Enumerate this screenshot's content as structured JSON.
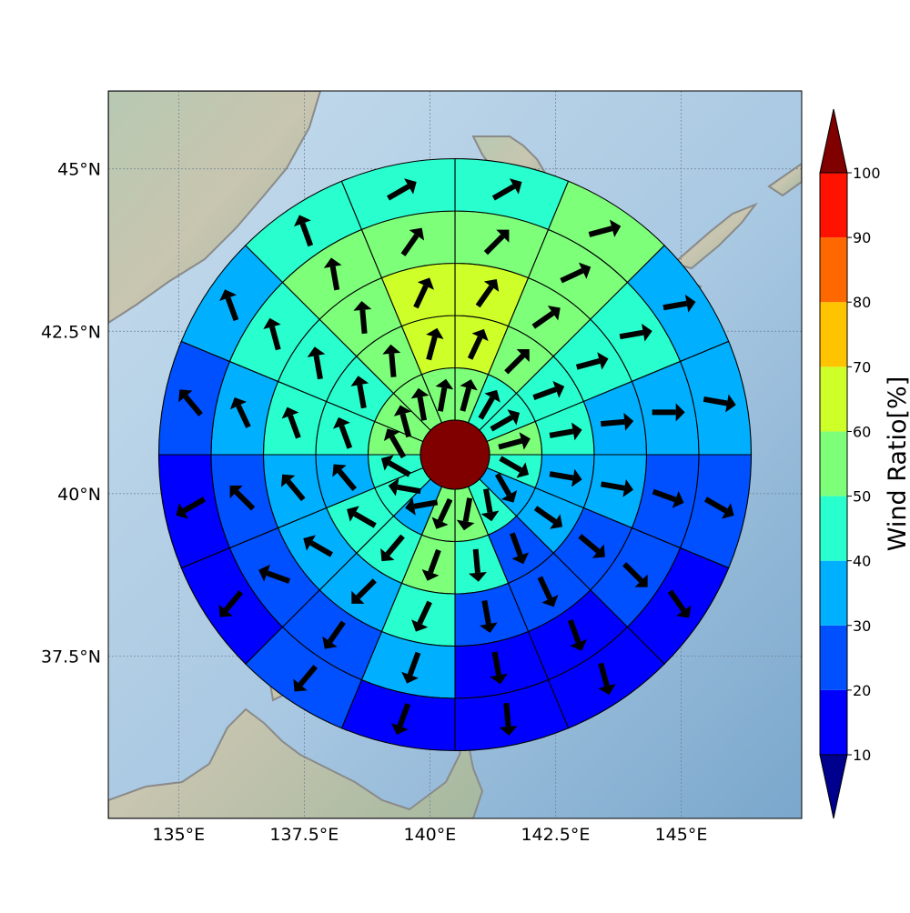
{
  "map": {
    "lat_ticks": [
      {
        "value": 45,
        "label": "45°N"
      },
      {
        "value": 42.5,
        "label": "42.5°N"
      },
      {
        "value": 40,
        "label": "40°N"
      },
      {
        "value": 37.5,
        "label": "37.5°N"
      }
    ],
    "lon_ticks": [
      {
        "value": 135,
        "label": "135°E"
      },
      {
        "value": 137.5,
        "label": "137.5°E"
      },
      {
        "value": 140,
        "label": "140°E"
      },
      {
        "value": 142.5,
        "label": "142.5°E"
      },
      {
        "value": 145,
        "label": "145°E"
      }
    ],
    "extent": {
      "lon_min": 133.6,
      "lon_max": 147.4,
      "lat_min": 35.0,
      "lat_max": 46.2
    },
    "center": {
      "lon": 140.5,
      "lat": 40.6
    },
    "grid": true
  },
  "colorbar": {
    "label": "Wind Ratio[%]",
    "ticks": [
      10,
      20,
      30,
      40,
      50,
      60,
      70,
      80,
      90,
      100
    ],
    "bins": [
      {
        "from": 10,
        "to": 20,
        "color": "#0000ff"
      },
      {
        "from": 20,
        "to": 30,
        "color": "#0050ff"
      },
      {
        "from": 30,
        "to": 40,
        "color": "#00b0ff"
      },
      {
        "from": 40,
        "to": 50,
        "color": "#29ffce"
      },
      {
        "from": 50,
        "to": 60,
        "color": "#7dff7a"
      },
      {
        "from": 60,
        "to": 70,
        "color": "#ceff29"
      },
      {
        "from": 70,
        "to": 80,
        "color": "#ffc400"
      },
      {
        "from": 80,
        "to": 90,
        "color": "#ff6800"
      },
      {
        "from": 90,
        "to": 100,
        "color": "#ff1300"
      }
    ],
    "under_color": "#00008f",
    "over_color": "#800000"
  },
  "chart_data": {
    "type": "heatmap",
    "rings": 5,
    "sectors": 16,
    "center_value": 100,
    "cells_note": "ring index 0 = innermost; sector index 0 = due north going clockwise",
    "ratios": [
      [
        55,
        45,
        45,
        55,
        45,
        35,
        45,
        55,
        55,
        35,
        45,
        45,
        55,
        55,
        55,
        55
      ],
      [
        65,
        55,
        45,
        45,
        35,
        35,
        25,
        45,
        55,
        45,
        45,
        35,
        45,
        45,
        55,
        65
      ],
      [
        65,
        55,
        45,
        35,
        35,
        25,
        25,
        25,
        45,
        35,
        35,
        35,
        45,
        45,
        55,
        65
      ],
      [
        55,
        55,
        45,
        35,
        25,
        25,
        15,
        15,
        35,
        25,
        25,
        25,
        35,
        45,
        55,
        55
      ],
      [
        45,
        55,
        35,
        35,
        25,
        15,
        15,
        15,
        15,
        25,
        15,
        15,
        25,
        35,
        45,
        45
      ]
    ],
    "wind_dir_deg": [
      [
        15,
        30,
        60,
        75,
        120,
        150,
        170,
        190,
        205,
        260,
        280,
        300,
        330,
        345,
        350,
        10
      ],
      [
        25,
        45,
        70,
        80,
        100,
        125,
        160,
        175,
        200,
        220,
        300,
        320,
        340,
        350,
        355,
        15
      ],
      [
        35,
        55,
        75,
        85,
        100,
        130,
        155,
        170,
        205,
        225,
        300,
        320,
        340,
        350,
        355,
        25
      ],
      [
        45,
        65,
        80,
        90,
        110,
        135,
        160,
        170,
        200,
        215,
        290,
        315,
        335,
        345,
        350,
        35
      ],
      [
        60,
        75,
        80,
        100,
        120,
        145,
        165,
        175,
        200,
        220,
        220,
        240,
        320,
        340,
        340,
        60
      ]
    ]
  }
}
